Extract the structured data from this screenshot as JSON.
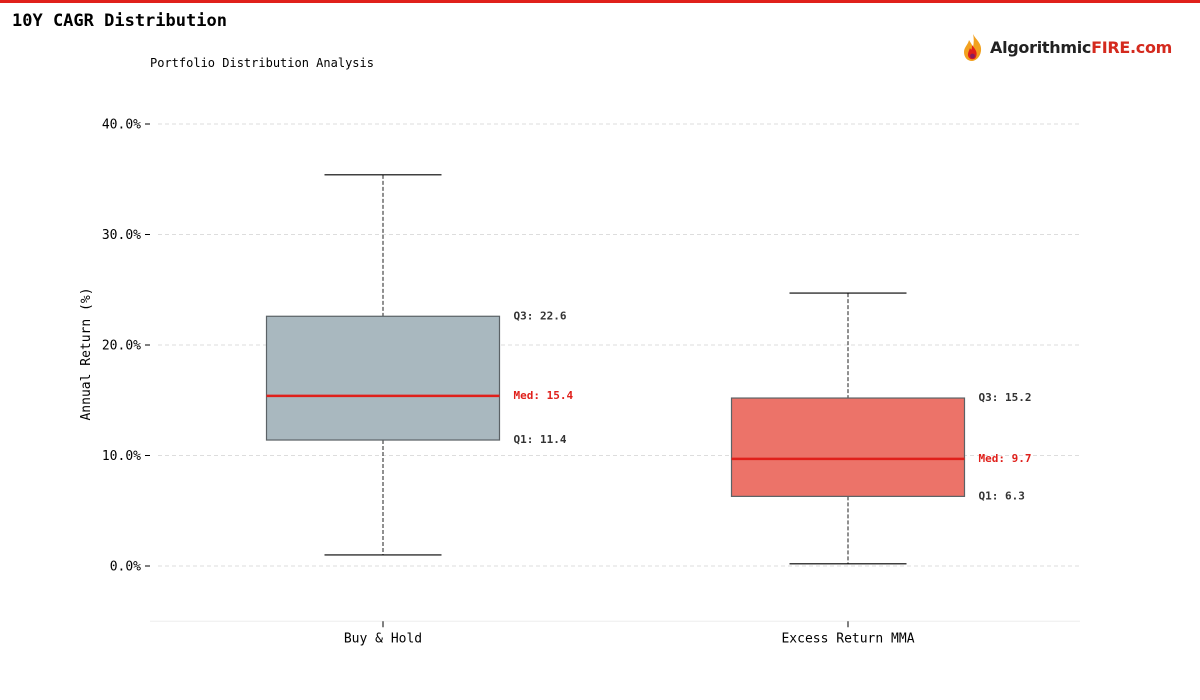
{
  "header": {
    "title": "10Y CAGR Distribution",
    "brand_prefix": "Algorithmic",
    "brand_suffix": "FIRE.com"
  },
  "colors": {
    "accent": "#e0201b",
    "median": "#e0201b",
    "box_edge": "#5b6266"
  },
  "chart_data": {
    "type": "boxplot",
    "subtitle": "Portfolio Distribution Analysis",
    "ylabel": "Annual Return (%)",
    "ylim": [
      -5,
      42
    ],
    "yticks": [
      0,
      10,
      20,
      30,
      40
    ],
    "ytick_labels": [
      "0.0%",
      "10.0%",
      "20.0%",
      "30.0%",
      "40.0%"
    ],
    "grid": true,
    "categories": [
      "Buy & Hold",
      "Excess Return MMA"
    ],
    "series": [
      {
        "category": "Buy & Hold",
        "whisker_low": 1.0,
        "q1": 11.4,
        "median": 15.4,
        "q3": 22.6,
        "whisker_high": 35.4,
        "color": "#a9b8bf",
        "q3_label": "Q3: 22.6",
        "median_label": "Med: 15.4",
        "q1_label": "Q1: 11.4"
      },
      {
        "category": "Excess Return MMA",
        "whisker_low": 0.2,
        "q1": 6.3,
        "median": 9.7,
        "q3": 15.2,
        "whisker_high": 24.7,
        "color": "#ec7369",
        "q3_label": "Q3: 15.2",
        "median_label": "Med: 9.7",
        "q1_label": "Q1: 6.3"
      }
    ]
  }
}
